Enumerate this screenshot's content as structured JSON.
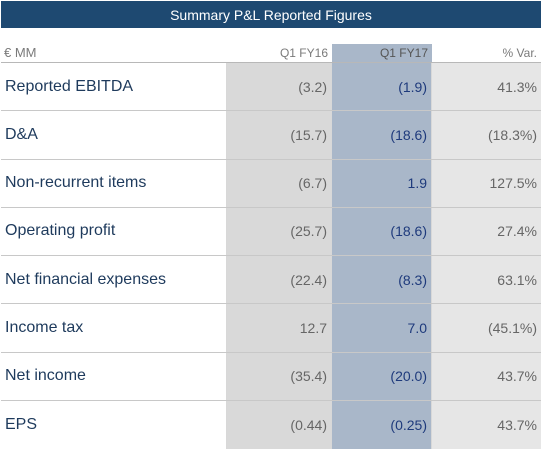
{
  "title": "Summary P&L Reported Figures",
  "header": {
    "unit": "€ MM",
    "col1": "Q1 FY16",
    "col2": "Q1 FY17",
    "col3": "% Var."
  },
  "rows": [
    {
      "label": "Reported EBITDA",
      "q1fy16": "(3.2)",
      "q1fy17": "(1.9)",
      "var": "41.3%"
    },
    {
      "label": "D&A",
      "q1fy16": "(15.7)",
      "q1fy17": "(18.6)",
      "var": "(18.3%)"
    },
    {
      "label": "Non-recurrent items",
      "q1fy16": "(6.7)",
      "q1fy17": "1.9",
      "var": "127.5%"
    },
    {
      "label": "Operating profit",
      "q1fy16": "(25.7)",
      "q1fy17": "(18.6)",
      "var": "27.4%"
    },
    {
      "label": "Net financial expenses",
      "q1fy16": "(22.4)",
      "q1fy17": "(8.3)",
      "var": "63.1%"
    },
    {
      "label": "Income tax",
      "q1fy16": "12.7",
      "q1fy17": "7.0",
      "var": "(45.1%)"
    },
    {
      "label": "Net income",
      "q1fy16": "(35.4)",
      "q1fy17": "(20.0)",
      "var": "43.7%"
    },
    {
      "label": "EPS",
      "q1fy16": "(0.44)",
      "q1fy17": "(0.25)",
      "var": "43.7%"
    }
  ]
}
